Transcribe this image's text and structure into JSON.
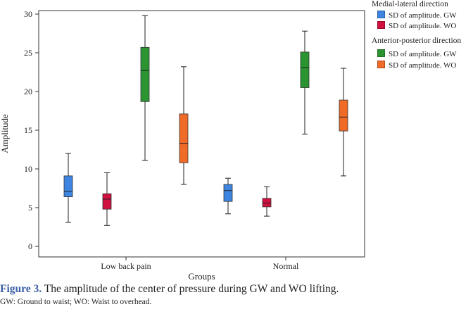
{
  "chart_data": {
    "type": "box",
    "title": "",
    "xlabel": "Groups",
    "ylabel": "Amplitude",
    "ylim": [
      0,
      30
    ],
    "yticks": [
      0,
      5,
      10,
      15,
      20,
      25,
      30
    ],
    "grid": false,
    "categories": [
      "Low back pain",
      "Normal"
    ],
    "series": [
      {
        "name": "SD of amplitude. GW",
        "legend_group": "Medial-lateral direction",
        "color": "#3d85e0",
        "boxes": [
          {
            "min": 3.1,
            "q1": 6.4,
            "median": 7.1,
            "q3": 9.1,
            "max": 12.0
          },
          {
            "min": 4.2,
            "q1": 5.8,
            "median": 7.2,
            "q3": 8.0,
            "max": 8.8
          }
        ]
      },
      {
        "name": "SD of amplitude. WO",
        "legend_group": "Medial-lateral direction",
        "color": "#d0103f",
        "boxes": [
          {
            "min": 2.7,
            "q1": 4.8,
            "median": 6.1,
            "q3": 6.8,
            "max": 9.5
          },
          {
            "min": 3.9,
            "q1": 5.1,
            "median": 5.6,
            "q3": 6.2,
            "max": 7.7
          }
        ]
      },
      {
        "name": "SD of amplitude. GW",
        "legend_group": "Anterior-posterior direction",
        "color": "#2a9430",
        "boxes": [
          {
            "min": 11.1,
            "q1": 18.7,
            "median": 22.7,
            "q3": 25.7,
            "max": 29.8
          },
          {
            "min": 14.5,
            "q1": 20.5,
            "median": 23.1,
            "q3": 25.1,
            "max": 27.8
          }
        ]
      },
      {
        "name": "SD of amplitude. WO",
        "legend_group": "Anterior-posterior direction",
        "color": "#f06a28",
        "boxes": [
          {
            "min": 8.0,
            "q1": 10.8,
            "median": 13.3,
            "q3": 17.1,
            "max": 23.2
          },
          {
            "min": 9.1,
            "q1": 14.9,
            "median": 16.7,
            "q3": 18.9,
            "max": 23.0
          }
        ]
      }
    ],
    "legend_position": "right"
  },
  "legend": {
    "group1_title": "Medial-lateral direction",
    "group1_item1": "SD of amplitude. GW",
    "group1_item2": "SD of amplitude. WO",
    "group2_title": "Anterior-posterior direction",
    "group2_item1": "SD of amplitude. GW",
    "group2_item2": "SD of amplitude. WO",
    "colors": [
      "#3d85e0",
      "#d0103f",
      "#2a9430",
      "#f06a28"
    ]
  },
  "caption": {
    "label": "Figure 3.",
    "text": " The amplitude of the center of pressure during GW and WO lifting.",
    "note": "GW: Ground to waist; WO: Waist to overhead."
  }
}
